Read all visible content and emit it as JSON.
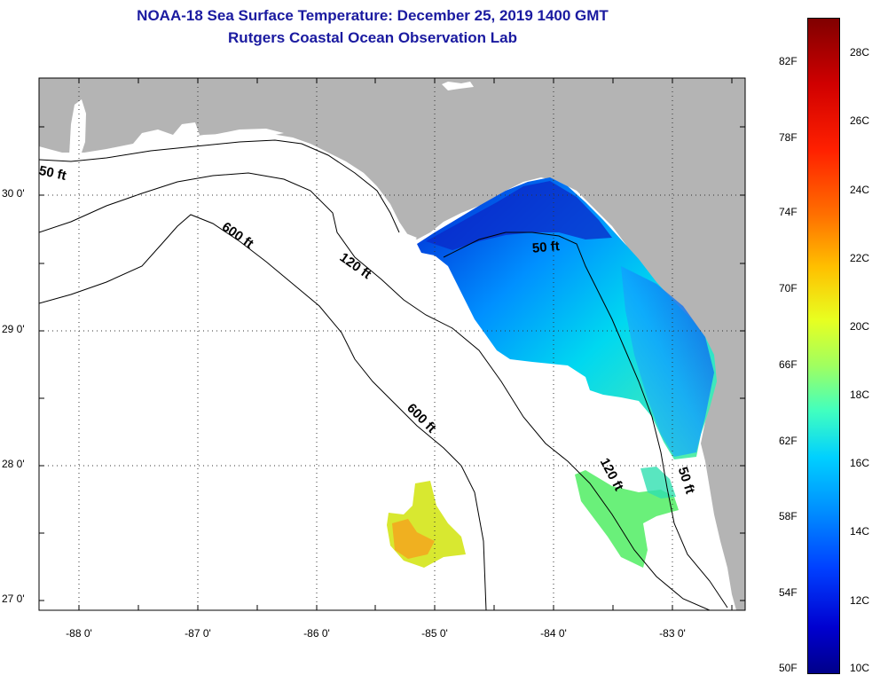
{
  "title_line1": "NOAA-18 Sea Surface Temperature:  December 25, 2019 1400 GMT",
  "title_line2": "Rutgers Coastal Ocean Observation Lab",
  "lat_labels": [
    "30 0'",
    "29 0'",
    "28 0'",
    "27 0'"
  ],
  "lon_labels": [
    "-88 0'",
    "-87 0'",
    "-86 0'",
    "-85 0'",
    "-84 0'",
    "-83 0'"
  ],
  "contour_labels": [
    "50 ft",
    "600 ft",
    "120 ft",
    "50 ft",
    "600 ft",
    "120 ft",
    "50 ft"
  ],
  "colorbar_f_labels": [
    "82F",
    "78F",
    "74F",
    "70F",
    "66F",
    "62F",
    "58F",
    "54F",
    "50F"
  ],
  "colorbar_c_labels": [
    "28C",
    "26C",
    "24C",
    "22C",
    "20C",
    "18C",
    "16C",
    "14C",
    "12C",
    "10C"
  ],
  "colors": {
    "land": "#b4b4b4",
    "ocean": "#ffffff",
    "title": "#1a1aa0",
    "colorbar_top": "#800000",
    "colorbar_bottom": "#00008a"
  },
  "map_extent": {
    "lon_range": [
      -88.33,
      -82.4
    ],
    "lat_range": [
      26.93,
      30.85
    ]
  }
}
